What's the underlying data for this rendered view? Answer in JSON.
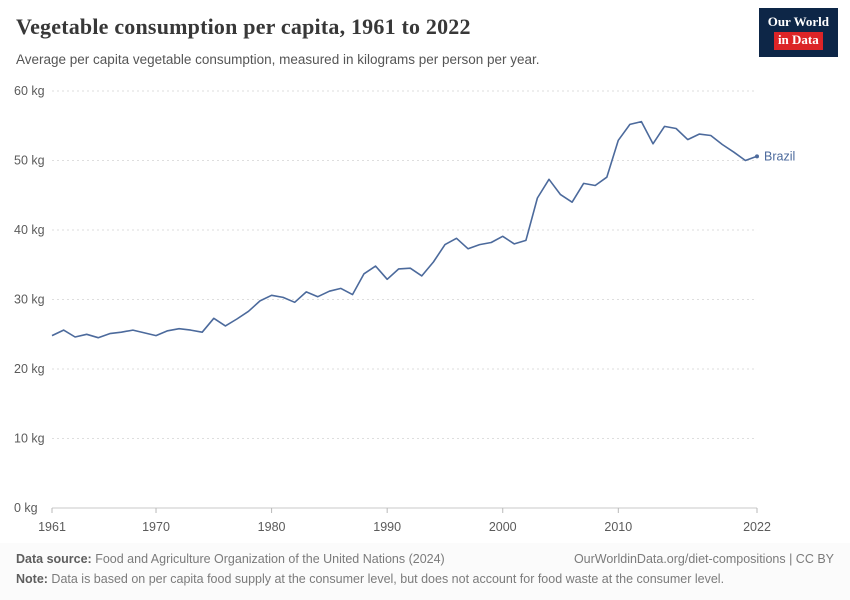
{
  "header": {
    "title": "Vegetable consumption per capita, 1961 to 2022",
    "subtitle": "Average per capita vegetable consumption, measured in kilograms per person per year."
  },
  "logo": {
    "line1": "Our World",
    "line2": "in Data",
    "bg_color": "#0d2647",
    "accent_color": "#dc2427"
  },
  "footer": {
    "data_source_label": "Data source:",
    "data_source": " Food and Agriculture Organization of the United Nations (2024)",
    "link": "OurWorldinData.org/diet-compositions | CC BY",
    "note_label": "Note:",
    "note": " Data is based on per capita food supply at the consumer level, but does not account for food waste at the consumer level."
  },
  "chart_data": {
    "type": "line",
    "title": "Vegetable consumption per capita, 1961 to 2022",
    "xlabel": "",
    "ylabel": "",
    "y_unit": "kg",
    "ylim": [
      0,
      60
    ],
    "y_ticks": [
      0,
      10,
      20,
      30,
      40,
      50,
      60
    ],
    "x_ticks": [
      1961,
      1970,
      1980,
      1990,
      2000,
      2010,
      2022
    ],
    "grid": "horizontal dashed",
    "legend": "end-of-line label",
    "x": [
      1961,
      1962,
      1963,
      1964,
      1965,
      1966,
      1967,
      1968,
      1969,
      1970,
      1971,
      1972,
      1973,
      1974,
      1975,
      1976,
      1977,
      1978,
      1979,
      1980,
      1981,
      1982,
      1983,
      1984,
      1985,
      1986,
      1987,
      1988,
      1989,
      1990,
      1991,
      1992,
      1993,
      1994,
      1995,
      1996,
      1997,
      1998,
      1999,
      2000,
      2001,
      2002,
      2003,
      2004,
      2005,
      2006,
      2007,
      2008,
      2009,
      2010,
      2011,
      2012,
      2013,
      2014,
      2015,
      2016,
      2017,
      2018,
      2019,
      2020,
      2021,
      2022
    ],
    "series": [
      {
        "name": "Brazil",
        "color": "#4c6a9c",
        "values": [
          24.8,
          25.6,
          24.6,
          25.0,
          24.5,
          25.1,
          25.3,
          25.6,
          25.2,
          24.8,
          25.5,
          25.8,
          25.6,
          25.3,
          27.3,
          26.2,
          27.2,
          28.3,
          29.8,
          30.6,
          30.3,
          29.6,
          31.1,
          30.4,
          31.2,
          31.6,
          30.7,
          33.7,
          34.8,
          32.9,
          34.4,
          34.5,
          33.4,
          35.4,
          37.9,
          38.8,
          37.3,
          37.9,
          38.2,
          39.1,
          38.0,
          38.5,
          44.6,
          47.3,
          45.1,
          44.0,
          46.7,
          46.4,
          47.6,
          52.9,
          55.2,
          55.6,
          52.4,
          54.9,
          54.6,
          53.0,
          53.8,
          53.6,
          52.3,
          51.2,
          50.0,
          50.6
        ]
      }
    ]
  }
}
